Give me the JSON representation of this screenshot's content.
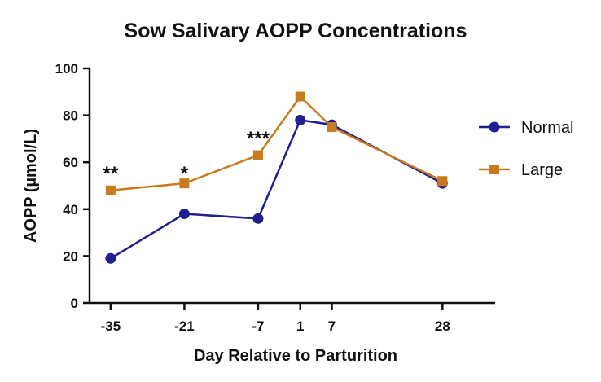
{
  "chart_data": {
    "type": "line",
    "title": "Sow Salivary AOPP Concentrations",
    "xlabel": "Day Relative to Parturition",
    "ylabel": "AOPP (µmol/L)",
    "x": [
      -35,
      -21,
      -7,
      1,
      7,
      28
    ],
    "x_tick_labels": [
      "-35",
      "-21",
      "-7",
      "1",
      "7",
      "28"
    ],
    "xlim": [
      -39,
      38
    ],
    "ylim": [
      0,
      100
    ],
    "y_ticks": [
      0,
      20,
      40,
      60,
      80,
      100
    ],
    "y_tick_labels": [
      "0",
      "20",
      "40",
      "60",
      "80",
      "100"
    ],
    "grid": false,
    "legend_position": "right",
    "series": [
      {
        "name": "Normal",
        "values": [
          19,
          38,
          36,
          78,
          76,
          51
        ],
        "color": "#1f1f8f",
        "marker": "circle"
      },
      {
        "name": "Large",
        "values": [
          48,
          51,
          63,
          88,
          75,
          52
        ],
        "color": "#c77a1e",
        "marker": "square"
      }
    ],
    "annotations": [
      {
        "x": -35,
        "y": 58,
        "text": "**"
      },
      {
        "x": -21,
        "y": 58,
        "text": "*"
      },
      {
        "x": -7,
        "y": 73,
        "text": "***"
      }
    ]
  }
}
